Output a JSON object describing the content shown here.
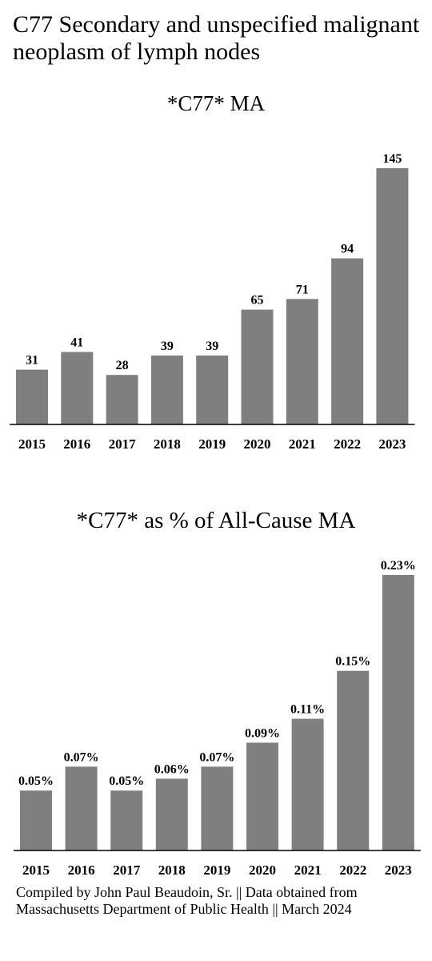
{
  "title": "C77 Secondary and unspecified malignant neoplasm of lymph nodes",
  "footer": "Compiled by John Paul Beaudoin, Sr. || Data obtained from Massachusetts Department of Public Health || March 2024",
  "colors": {
    "bar": "#7f7f7f",
    "axis": "#000000",
    "text": "#000000",
    "background": "#ffffff"
  },
  "chart_data": [
    {
      "type": "bar",
      "title": "*C77* MA",
      "categories": [
        "2015",
        "2016",
        "2017",
        "2018",
        "2019",
        "2020",
        "2021",
        "2022",
        "2023"
      ],
      "values": [
        31,
        41,
        28,
        39,
        39,
        65,
        71,
        94,
        145
      ],
      "data_labels": [
        "31",
        "41",
        "28",
        "39",
        "39",
        "65",
        "71",
        "94",
        "145"
      ],
      "xlabel": "",
      "ylabel": "",
      "ylim": [
        0,
        145
      ],
      "grid": false,
      "legend": "none"
    },
    {
      "type": "bar",
      "title": "*C77* as % of All-Cause MA",
      "categories": [
        "2015",
        "2016",
        "2017",
        "2018",
        "2019",
        "2020",
        "2021",
        "2022",
        "2023"
      ],
      "values": [
        0.05,
        0.07,
        0.05,
        0.06,
        0.07,
        0.09,
        0.11,
        0.15,
        0.23
      ],
      "data_labels": [
        "0.05%",
        "0.07%",
        "0.05%",
        "0.06%",
        "0.07%",
        "0.09%",
        "0.11%",
        "0.15%",
        "0.23%"
      ],
      "xlabel": "",
      "ylabel": "",
      "ylim": [
        0,
        0.23
      ],
      "grid": false,
      "legend": "none"
    }
  ]
}
